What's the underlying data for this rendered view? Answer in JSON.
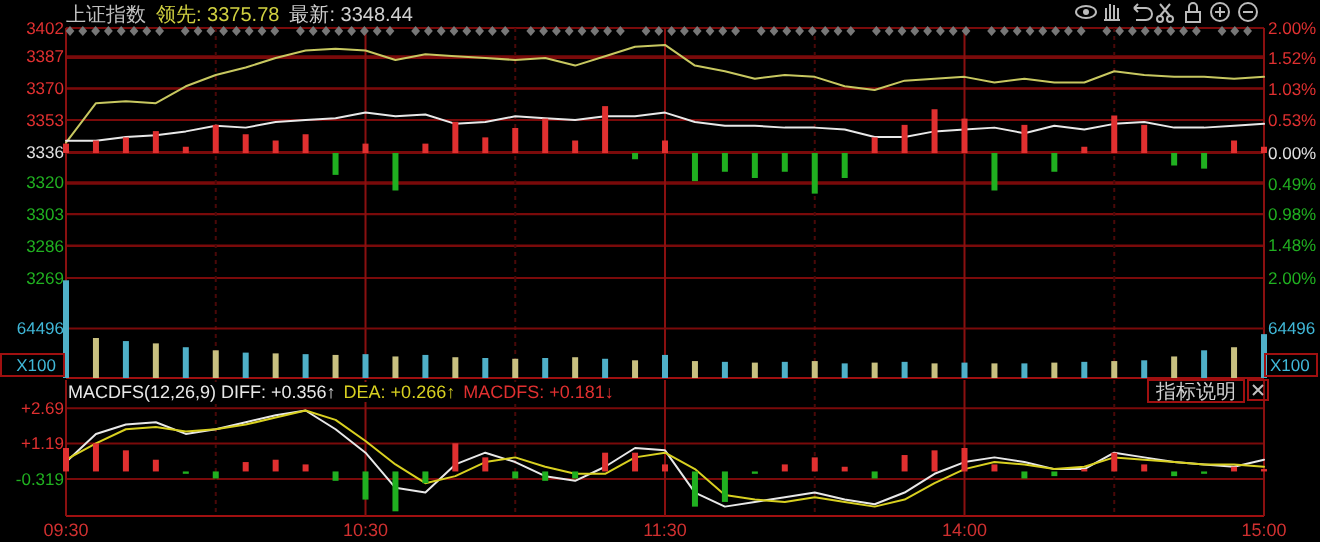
{
  "chart_data": [
    {
      "type": "line",
      "title": "上证指数",
      "annotations": [
        "领先: 3375.78",
        "最新: 3348.44"
      ],
      "categories": [
        null,
        null,
        null,
        null,
        null,
        null,
        null,
        null,
        null,
        null,
        null,
        null,
        null,
        null,
        null,
        null,
        null,
        null,
        null,
        null,
        null,
        null,
        null,
        null,
        null,
        null,
        null,
        null,
        null,
        null,
        null,
        null,
        null,
        null,
        null,
        null,
        null,
        null,
        null,
        null,
        null
      ],
      "grid": true,
      "ylim": [
        3269,
        3402
      ],
      "yticks": [
        3402,
        3387,
        3370,
        3353,
        3336,
        3320,
        3303,
        3286,
        3269
      ],
      "y2lim": [
        -2,
        2
      ],
      "y2ticks": [
        {
          "value": 2,
          "label": "2.00%"
        },
        {
          "value": 1.52,
          "label": "1.52%"
        },
        {
          "value": 1.03,
          "label": "1.03%"
        },
        {
          "value": 0.53,
          "label": "0.53%"
        },
        {
          "value": 0,
          "label": "0.00%"
        },
        {
          "value": -0.49,
          "label": "0.49%"
        },
        {
          "value": -0.98,
          "label": "0.98%"
        },
        {
          "value": -1.48,
          "label": "1.48%"
        },
        {
          "value": -2,
          "label": "2.00%"
        }
      ],
      "series": [
        {
          "type": "bar",
          "axis": "y2",
          "values": [
            0.15,
            0.2,
            0.25,
            0.35,
            0.1,
            0.45,
            0.3,
            0.2,
            0.3,
            -0.35,
            0.15,
            -0.6,
            0.15,
            0.5,
            0.25,
            0.4,
            0.55,
            0.2,
            0.75,
            -0.1,
            0.2,
            -0.45,
            -0.3,
            -0.4,
            -0.3,
            -0.65,
            -0.4,
            0.25,
            0.45,
            0.7,
            0.55,
            -0.6,
            0.45,
            -0.3,
            0.1,
            0.6,
            0.45,
            -0.2,
            -0.25,
            0.2,
            0.1
          ],
          "colors": [
            "#e03030",
            "#e03030",
            "#e03030",
            "#e03030",
            "#e03030",
            "#e03030",
            "#e03030",
            "#e03030",
            "#e03030",
            "#20b020",
            "#e03030",
            "#20b020",
            "#e03030",
            "#e03030",
            "#e03030",
            "#e03030",
            "#e03030",
            "#e03030",
            "#e03030",
            "#20b020",
            "#e03030",
            "#20b020",
            "#20b020",
            "#20b020",
            "#20b020",
            "#20b020",
            "#20b020",
            "#e03030",
            "#e03030",
            "#e03030",
            "#e03030",
            "#20b020",
            "#e03030",
            "#20b020",
            "#e03030",
            "#e03030",
            "#e03030",
            "#20b020",
            "#20b020",
            "#e03030",
            "#e03030"
          ]
        },
        {
          "color": "#c8c860",
          "values": [
            3341,
            3362,
            3363,
            3362,
            3371,
            3377,
            3381,
            3386,
            3390,
            3391,
            3390,
            3385,
            3388,
            3387,
            3386,
            3385,
            3386,
            3382,
            3387,
            3392,
            3393,
            3382,
            3379,
            3375,
            3377,
            3376,
            3371,
            3369,
            3374,
            3375,
            3376,
            3373,
            3375,
            3373,
            3373,
            3379,
            3377,
            3376,
            3376,
            3375,
            3376
          ]
        },
        {
          "color": "#e8e8e8",
          "values": [
            3342,
            3342,
            3344,
            3345,
            3347,
            3350,
            3349,
            3352,
            3353,
            3354,
            3357,
            3355,
            3356,
            3351,
            3352,
            3355,
            3354,
            3353,
            3355,
            3355,
            3357,
            3352,
            3350,
            3350,
            3349,
            3349,
            3348,
            3344,
            3344,
            3347,
            3348,
            3349,
            3346,
            3350,
            3348,
            3351,
            3352,
            3349,
            3349,
            3350,
            3351
          ]
        }
      ]
    },
    {
      "type": "bar",
      "categories": [
        null,
        null,
        null,
        null,
        null,
        null,
        null,
        null,
        null,
        null,
        null,
        null,
        null,
        null,
        null,
        null,
        null,
        null,
        null,
        null,
        null,
        null,
        null,
        null,
        null,
        null,
        null,
        null,
        null,
        null,
        null,
        null,
        null,
        null,
        null,
        null,
        null,
        null,
        null,
        null,
        null
      ],
      "grid": "x",
      "ref_lines": [
        {
          "axis": "y",
          "value": 64496
        }
      ],
      "ylabel": "X100",
      "ylim": [
        0,
        130000
      ],
      "yticks": [
        64496
      ],
      "annotations": [
        "64496",
        "X100"
      ],
      "values": [
        127000,
        52000,
        48000,
        45000,
        40000,
        36000,
        33000,
        32000,
        31000,
        30000,
        31000,
        28000,
        30000,
        27000,
        26000,
        25000,
        26000,
        27000,
        25000,
        23000,
        30000,
        22000,
        21000,
        20000,
        21000,
        22000,
        19000,
        20000,
        21000,
        19000,
        20000,
        19000,
        19000,
        20000,
        21000,
        22000,
        23000,
        28000,
        36000,
        40000,
        57000
      ],
      "colors": [
        "#4fb0c8",
        "#c8c080",
        "#4fb0c8",
        "#c8c080",
        "#4fb0c8",
        "#c8c080",
        "#4fb0c8",
        "#c8c080",
        "#4fb0c8",
        "#c8c080",
        "#4fb0c8",
        "#c8c080",
        "#4fb0c8",
        "#c8c080",
        "#4fb0c8",
        "#c8c080",
        "#4fb0c8",
        "#c8c080",
        "#4fb0c8",
        "#c8c080",
        "#4fb0c8",
        "#c8c080",
        "#4fb0c8",
        "#c8c080",
        "#4fb0c8",
        "#c8c080",
        "#4fb0c8",
        "#c8c080",
        "#4fb0c8",
        "#c8c080",
        "#4fb0c8",
        "#c8c080",
        "#4fb0c8",
        "#c8c080",
        "#4fb0c8",
        "#c8c080",
        "#4fb0c8",
        "#c8c080",
        "#4fb0c8",
        "#c8c080",
        "#4fb0c8"
      ]
    },
    {
      "type": "line",
      "annotations": [
        "MACDFS(12,26,9) DIFF: +0.356↑",
        "DEA: +0.266↑",
        "MACDFS: +0.181↓",
        "指标说明"
      ],
      "categories": [
        "09:30",
        null,
        null,
        null,
        null,
        null,
        null,
        null,
        null,
        null,
        "10:30",
        null,
        null,
        null,
        null,
        null,
        null,
        null,
        null,
        null,
        "11:30",
        null,
        null,
        null,
        null,
        null,
        null,
        null,
        null,
        null,
        "14:00",
        null,
        null,
        null,
        null,
        null,
        null,
        null,
        null,
        null,
        "15:00"
      ],
      "grid": true,
      "ylim": [
        -1.9,
        3.9
      ],
      "yticks": [
        {
          "value": 2.69,
          "label": "+2.69"
        },
        {
          "value": 1.19,
          "label": "+1.19"
        },
        -0.319
      ],
      "series": [
        {
          "type": "bar",
          "values": [
            1.0,
            1.2,
            0.9,
            0.5,
            -0.1,
            -0.3,
            0.4,
            0.5,
            0.3,
            -0.4,
            -1.2,
            -1.7,
            -0.5,
            1.2,
            0.6,
            -0.3,
            -0.4,
            -0.3,
            0.8,
            0.8,
            0.3,
            -1.5,
            -1.3,
            -0.1,
            0.3,
            0.6,
            0.2,
            -0.3,
            0.7,
            0.9,
            1.0,
            0.3,
            -0.3,
            -0.2,
            0.1,
            0.8,
            0.3,
            -0.2,
            -0.1,
            0.2,
            0.1
          ],
          "colors": [
            "#e03030",
            "#e03030",
            "#e03030",
            "#e03030",
            "#20b020",
            "#20b020",
            "#e03030",
            "#e03030",
            "#e03030",
            "#20b020",
            "#20b020",
            "#20b020",
            "#20b020",
            "#e03030",
            "#e03030",
            "#20b020",
            "#20b020",
            "#20b020",
            "#e03030",
            "#e03030",
            "#e03030",
            "#20b020",
            "#20b020",
            "#20b020",
            "#e03030",
            "#e03030",
            "#e03030",
            "#20b020",
            "#e03030",
            "#e03030",
            "#e03030",
            "#e03030",
            "#20b020",
            "#20b020",
            "#e03030",
            "#e03030",
            "#e03030",
            "#20b020",
            "#20b020",
            "#e03030",
            "#e03030"
          ]
        },
        {
          "color": "#e8e8e8",
          "values": [
            0.4,
            1.6,
            2.0,
            2.1,
            1.6,
            1.8,
            2.1,
            2.4,
            2.6,
            1.8,
            0.8,
            -0.7,
            -0.9,
            0.3,
            0.8,
            0.4,
            -0.2,
            -0.4,
            0.2,
            1.0,
            0.9,
            -0.9,
            -1.5,
            -1.3,
            -1.1,
            -0.9,
            -1.2,
            -1.4,
            -0.9,
            -0.1,
            0.4,
            0.6,
            0.4,
            0.1,
            0.1,
            0.8,
            0.6,
            0.4,
            0.3,
            0.2,
            0.5
          ]
        },
        {
          "color": "#d8d020",
          "values": [
            0.5,
            1.2,
            1.8,
            1.9,
            1.7,
            1.8,
            2.0,
            2.3,
            2.6,
            2.2,
            1.3,
            0.3,
            -0.5,
            -0.2,
            0.4,
            0.6,
            0.2,
            -0.1,
            -0.1,
            0.6,
            0.8,
            0.1,
            -1.0,
            -1.2,
            -1.3,
            -1.1,
            -1.3,
            -1.5,
            -1.2,
            -0.5,
            0.1,
            0.4,
            0.3,
            0.1,
            0.2,
            0.6,
            0.5,
            0.4,
            0.3,
            0.3,
            0.2
          ]
        }
      ]
    }
  ]
}
